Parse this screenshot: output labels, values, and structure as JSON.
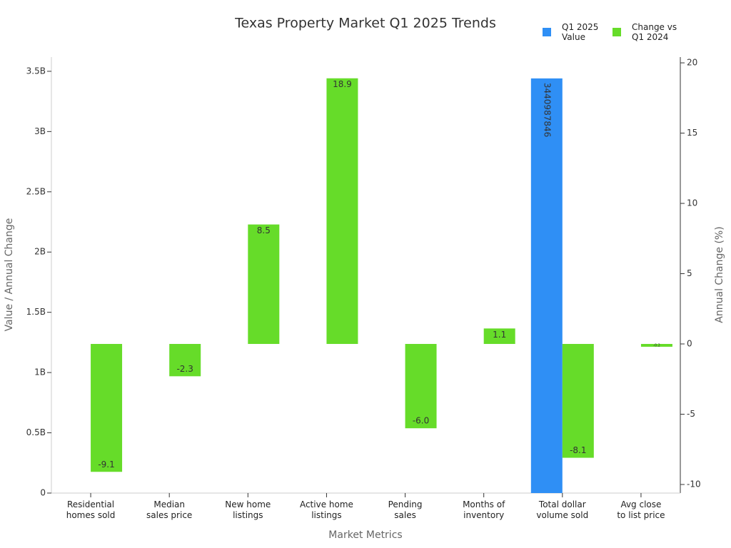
{
  "chart_data": {
    "type": "bar",
    "title": "Texas Property Market Q1 2025 Trends",
    "x_label": "Market Metrics",
    "y_label": "Value / Annual Change",
    "y2_label": "Annual Change (%)",
    "categories": [
      "Residential\nhomes sold",
      "Median\nsales price",
      "New home\nlistings",
      "Active home\nlistings",
      "Pending\nsales",
      "Months of\ninventory",
      "Total dollar\nvolume sold",
      "Avg close\nto list price"
    ],
    "series": [
      {
        "name": "Q1 2025\nValue",
        "color": "#2f8ff5",
        "values": [
          null,
          null,
          null,
          null,
          null,
          null,
          3440987846,
          null
        ]
      },
      {
        "name": "Change vs\nQ1 2024",
        "color": "#66dc29",
        "axis": "y2",
        "values": [
          -9.1,
          -2.3,
          8.5,
          18.9,
          -6.0,
          1.1,
          -8.1,
          -0.2
        ],
        "value_labels": [
          "-9.1",
          "-2.3",
          "8.5",
          "18.9",
          "-6.0",
          "1.1",
          "-8.1",
          "-0.2"
        ]
      }
    ],
    "ylim": [
      0,
      3618000000
    ],
    "yticks": [
      0,
      {
        "value": 500000000,
        "label": "0.5B"
      },
      {
        "value": 1000000000,
        "label": "1B"
      },
      {
        "value": 1500000000,
        "label": "1.5B"
      },
      {
        "value": 2000000000,
        "label": "2B"
      },
      {
        "value": 2500000000,
        "label": "2.5B"
      },
      {
        "value": 3000000000,
        "label": "3B"
      },
      {
        "value": 3500000000,
        "label": "3.5B"
      }
    ],
    "y2lim": [
      -10.61,
      20.41
    ],
    "y2ticks": [
      -10,
      -5,
      0,
      5,
      10,
      15,
      20
    ],
    "legend": "upper right"
  }
}
